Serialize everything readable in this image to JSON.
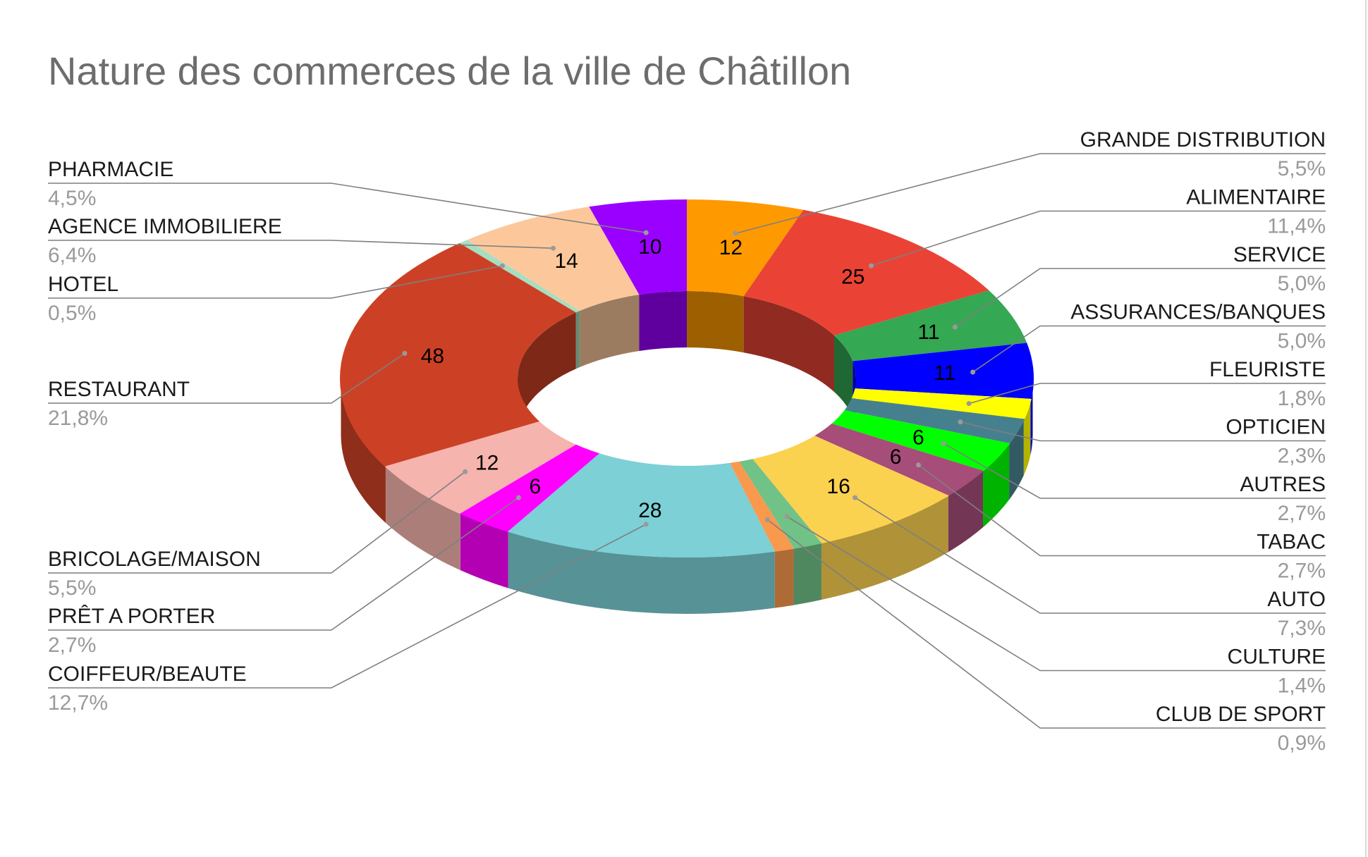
{
  "chart_data": {
    "type": "pie",
    "subtype": "3d-doughnut",
    "title": "Nature des commerces de la ville de Châtillon",
    "legend": "none",
    "slices": [
      {
        "name": "GRANDE DISTRIBUTION",
        "value": 12,
        "percent": "5,5%",
        "color": "#FF9900"
      },
      {
        "name": "ALIMENTAIRE",
        "value": 25,
        "percent": "11,4%",
        "color": "#EA4335"
      },
      {
        "name": "SERVICE",
        "value": 11,
        "percent": "5,0%",
        "color": "#34A853"
      },
      {
        "name": "ASSURANCES/BANQUES",
        "value": 11,
        "percent": "5,0%",
        "color": "#0000FF"
      },
      {
        "name": "FLEURISTE",
        "value": 4,
        "percent": "1,8%",
        "color": "#FFFF00"
      },
      {
        "name": "OPTICIEN",
        "value": 5,
        "percent": "2,3%",
        "color": "#46808E"
      },
      {
        "name": "AUTRES",
        "value": 6,
        "percent": "2,7%",
        "color": "#00FF00"
      },
      {
        "name": "TABAC",
        "value": 6,
        "percent": "2,7%",
        "color": "#A64D79"
      },
      {
        "name": "AUTO",
        "value": 16,
        "percent": "7,3%",
        "color": "#FBD150"
      },
      {
        "name": "CULTURE",
        "value": 3,
        "percent": "1,4%",
        "color": "#71C287"
      },
      {
        "name": "CLUB DE SPORT",
        "value": 2,
        "percent": "0,9%",
        "color": "#F9994D"
      },
      {
        "name": "COIFFEUR/BEAUTE",
        "value": 28,
        "percent": "12,7%",
        "color": "#7CD0D6"
      },
      {
        "name": "PRÊT A PORTER",
        "value": 6,
        "percent": "2,7%",
        "color": "#FF00FF"
      },
      {
        "name": "BRICOLAGE/MAISON",
        "value": 12,
        "percent": "5,5%",
        "color": "#F6B4AF"
      },
      {
        "name": "RESTAURANT",
        "value": 48,
        "percent": "21,8%",
        "color": "#CC4125"
      },
      {
        "name": "HOTEL",
        "value": 1,
        "percent": "0,5%",
        "color": "#A8DEC0"
      },
      {
        "name": "AGENCE IMMOBILIERE",
        "value": 14,
        "percent": "6,4%",
        "color": "#FCC89B"
      },
      {
        "name": "PHARMACIE",
        "value": 10,
        "percent": "4,5%",
        "color": "#9900FF"
      }
    ]
  }
}
